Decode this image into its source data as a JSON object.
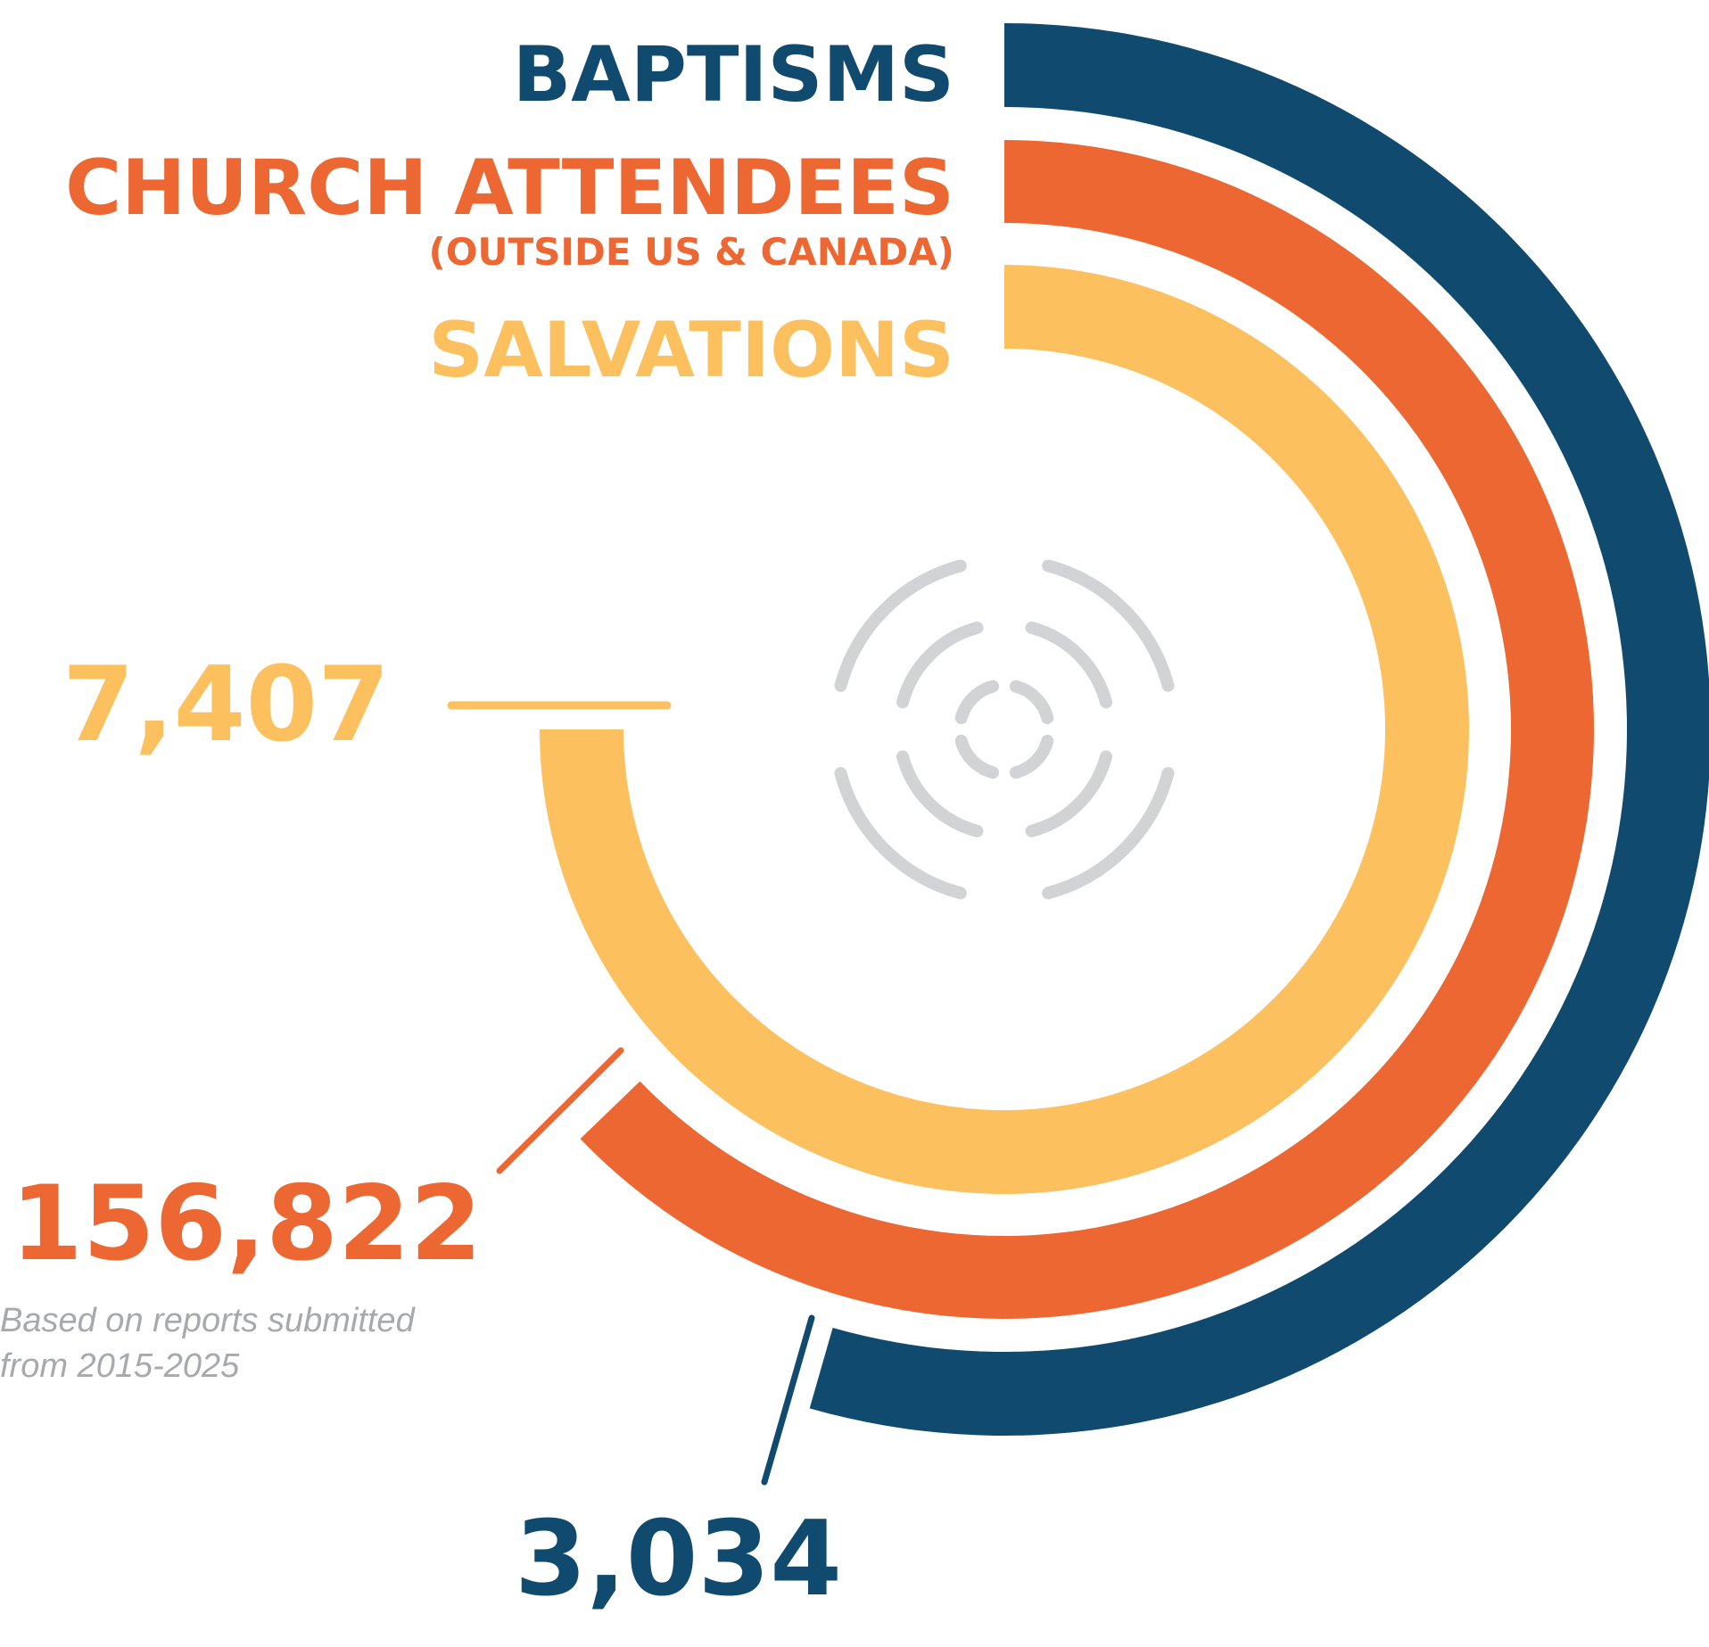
{
  "chart_data": {
    "type": "radial-bar",
    "series": [
      {
        "name": "BAPTISMS",
        "value": 3034,
        "value_label": "3,034",
        "color": "#104A6E"
      },
      {
        "name": "CHURCH ATTENDEES",
        "subtitle": "(OUTSIDE US & CANADA)",
        "value": 156822,
        "value_label": "156,822",
        "color": "#EC6732"
      },
      {
        "name": "SALVATIONS",
        "value": 7407,
        "value_label": "7,407",
        "color": "#FCC05E"
      }
    ],
    "note": [
      "Based on reports submitted",
      "from 2015-2025"
    ],
    "note_color": "#A7A9AC",
    "icon": {
      "name": "broadcast-signal-icon",
      "color": "#D1D3D4"
    }
  }
}
